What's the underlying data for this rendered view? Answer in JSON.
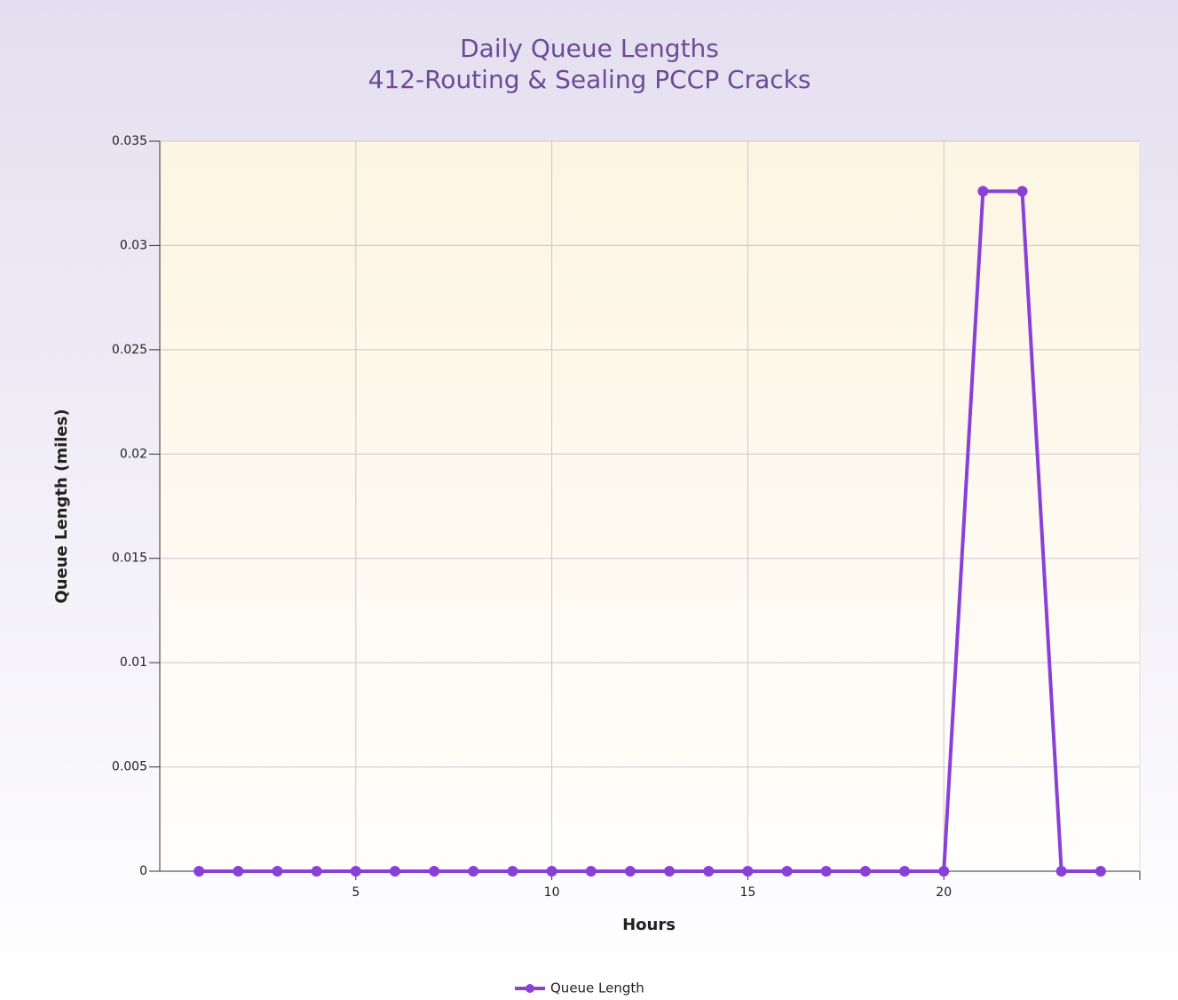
{
  "chart_data": {
    "type": "line",
    "title": "Daily Queue Lengths",
    "subtitle": "412-Routing & Sealing PCCP Cracks",
    "x_label": "Hours",
    "y_label": "Queue Length (miles)",
    "x": [
      1,
      2,
      3,
      4,
      5,
      6,
      7,
      8,
      9,
      10,
      11,
      12,
      13,
      14,
      15,
      16,
      17,
      18,
      19,
      20,
      21,
      22,
      23,
      24
    ],
    "series": [
      {
        "name": "Queue Length",
        "color": "#8a3fd6",
        "values": [
          0,
          0,
          0,
          0,
          0,
          0,
          0,
          0,
          0,
          0,
          0,
          0,
          0,
          0,
          0,
          0,
          0,
          0,
          0,
          0,
          0.0326,
          0.0326,
          0,
          0
        ]
      }
    ],
    "xlim": [
      0,
      25
    ],
    "xticks": [
      5,
      10,
      15,
      20
    ],
    "ylim": [
      0,
      0.035
    ],
    "yticks": [
      0,
      0.005,
      0.01,
      0.015,
      0.02,
      0.025,
      0.03,
      0.035
    ],
    "grid": true,
    "legend": "bottom"
  }
}
